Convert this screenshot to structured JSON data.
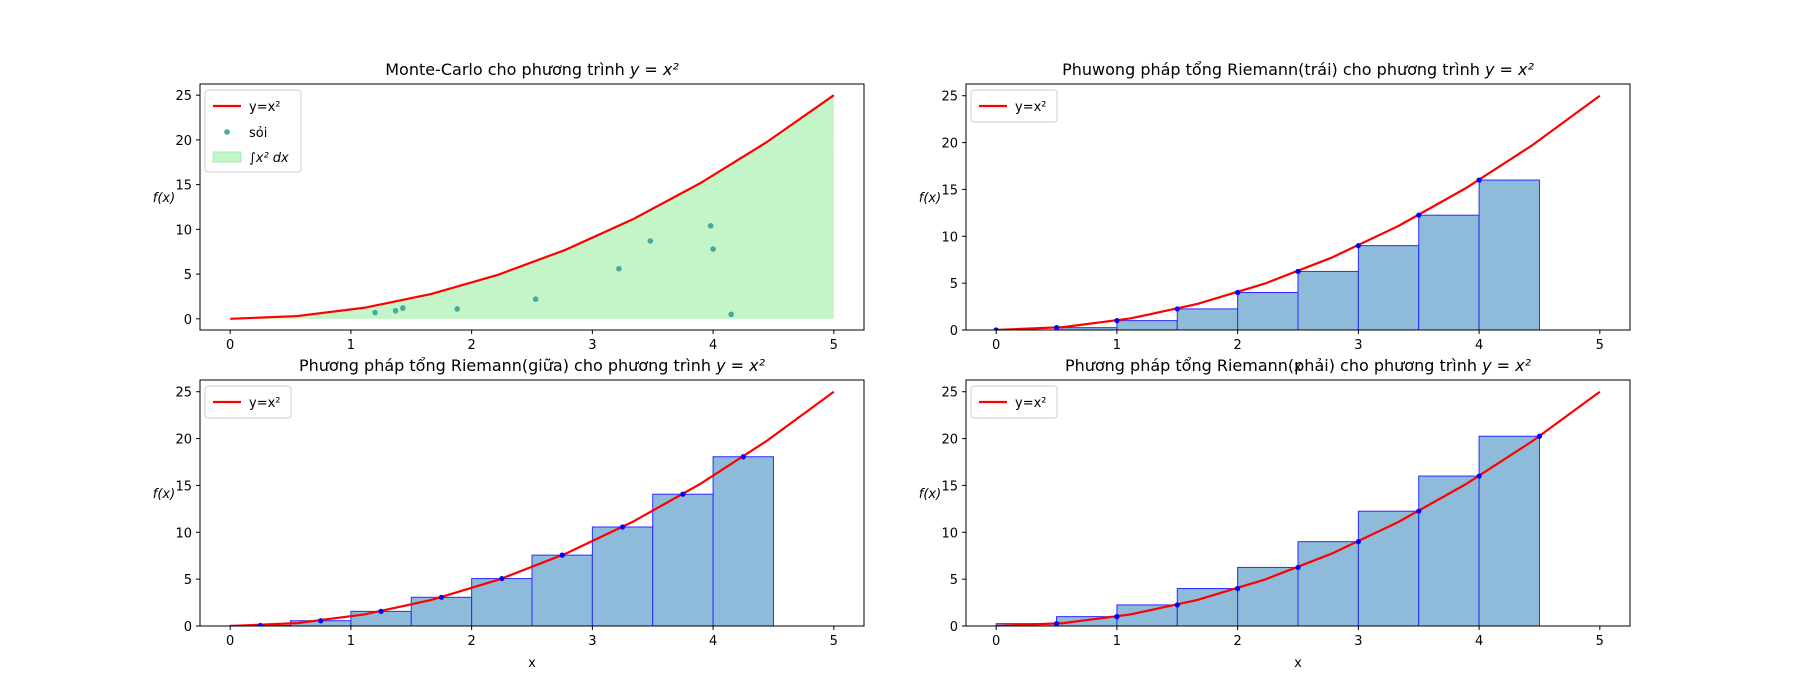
{
  "chart_data": [
    {
      "type": "scatter",
      "title_plain": "Monte-Carlo cho phương trình ",
      "title_math": "y = x²",
      "xlabel": "",
      "ylabel": "f(x)",
      "xlim": [
        -0.25,
        5.25
      ],
      "ylim": [
        -1.25,
        26.25
      ],
      "xticks": [
        0,
        1,
        2,
        3,
        4,
        5
      ],
      "yticks": [
        0,
        5,
        10,
        15,
        20,
        25
      ],
      "line": {
        "name": "y=x²",
        "color": "#ff0000",
        "x": [
          0,
          0.5556,
          1.1111,
          1.6667,
          2.2222,
          2.7778,
          3.3333,
          3.8889,
          4.4444,
          5.0
        ],
        "y": [
          0,
          0.3086,
          1.2346,
          2.7778,
          4.9383,
          7.716,
          11.1111,
          15.1235,
          19.7531,
          25.0
        ]
      },
      "points": {
        "name": "sỏi",
        "color": "#1f77b4",
        "x": [
          1.2,
          1.37,
          1.43,
          1.88,
          2.53,
          3.22,
          3.48,
          3.98,
          4.0,
          4.15
        ],
        "y": [
          0.7,
          0.9,
          1.2,
          1.1,
          2.2,
          5.6,
          8.7,
          10.4,
          7.8,
          0.5
        ]
      },
      "fill": {
        "name": "∫x² dx",
        "color": "#90ee90"
      },
      "legend": "upper left"
    },
    {
      "type": "bar",
      "title_plain": "Phuwong pháp tổng Riemann(trái) cho phương trình ",
      "title_math": "y = x²",
      "xlabel": "x",
      "ylabel": "f(x)",
      "xlim": [
        -0.25,
        5.25
      ],
      "ylim": [
        0,
        26.25
      ],
      "xticks": [
        0,
        1,
        2,
        3,
        4,
        5
      ],
      "yticks": [
        0,
        5,
        10,
        15,
        20,
        25
      ],
      "line_name": "y=x²",
      "bar_left": [
        0,
        0.5,
        1.0,
        1.5,
        2.0,
        2.5,
        3.0,
        3.5,
        4.0
      ],
      "bar_width": 0.5,
      "values": [
        0,
        0.25,
        1.0,
        2.25,
        4.0,
        6.25,
        9.0,
        12.25,
        16.0
      ],
      "sample_x": [
        0,
        0.5,
        1.0,
        1.5,
        2.0,
        2.5,
        3.0,
        3.5,
        4.0
      ],
      "legend": "upper left"
    },
    {
      "type": "bar",
      "title_plain": "Phương pháp tổng Riemann(giữa) cho phương trình ",
      "title_math": "y = x²",
      "xlabel": "x",
      "ylabel": "f(x)",
      "xlim": [
        -0.25,
        5.25
      ],
      "ylim": [
        0,
        26.25
      ],
      "xticks": [
        0,
        1,
        2,
        3,
        4,
        5
      ],
      "yticks": [
        0,
        5,
        10,
        15,
        20,
        25
      ],
      "line_name": "y=x²",
      "bar_left": [
        0,
        0.5,
        1.0,
        1.5,
        2.0,
        2.5,
        3.0,
        3.5,
        4.0
      ],
      "bar_width": 0.5,
      "values": [
        0.0625,
        0.5625,
        1.5625,
        3.0625,
        5.0625,
        7.5625,
        10.5625,
        14.0625,
        18.0625
      ],
      "sample_x": [
        0.25,
        0.75,
        1.25,
        1.75,
        2.25,
        2.75,
        3.25,
        3.75,
        4.25
      ],
      "legend": "upper left"
    },
    {
      "type": "bar",
      "title_plain": "Phương pháp tổng Riemann(phải) cho phương trình ",
      "title_math": "y = x²",
      "xlabel": "x",
      "ylabel": "f(x)",
      "xlim": [
        -0.25,
        5.25
      ],
      "ylim": [
        0,
        26.25
      ],
      "xticks": [
        0,
        1,
        2,
        3,
        4,
        5
      ],
      "yticks": [
        0,
        5,
        10,
        15,
        20,
        25
      ],
      "line_name": "y=x²",
      "bar_left": [
        0,
        0.5,
        1.0,
        1.5,
        2.0,
        2.5,
        3.0,
        3.5,
        4.0
      ],
      "bar_width": 0.5,
      "values": [
        0.25,
        1.0,
        2.25,
        4.0,
        6.25,
        9.0,
        12.25,
        16.0,
        20.25
      ],
      "sample_x": [
        0.5,
        1.0,
        1.5,
        2.0,
        2.5,
        3.0,
        3.5,
        4.0,
        4.5
      ],
      "legend": "upper left"
    }
  ],
  "colors": {
    "curve": "#ff0000",
    "bar_fill": "#8fbbdb",
    "bar_edge": "#2b2bff",
    "sample_dot": "#0000ff",
    "pebble": "#45aaa0",
    "area_fill": "#c4f5c8"
  }
}
